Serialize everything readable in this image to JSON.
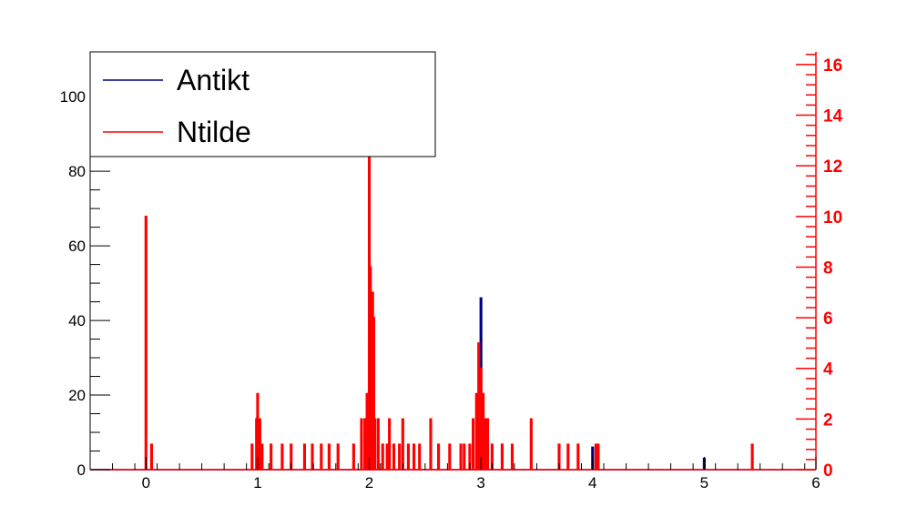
{
  "chart_data": {
    "type": "line",
    "title": "",
    "xlabel": "",
    "ylabel": "",
    "xlim": [
      -0.5,
      6
    ],
    "ylim_left": [
      0,
      112
    ],
    "ylim_right": [
      0,
      16.5
    ],
    "x_ticks": [
      "0",
      "1",
      "2",
      "3",
      "4",
      "5",
      "6"
    ],
    "y_left_ticks": [
      "0",
      "20",
      "40",
      "60",
      "80",
      "100"
    ],
    "y_right_ticks": [
      "0",
      "2",
      "4",
      "6",
      "8",
      "10",
      "12",
      "14",
      "16"
    ],
    "legend": {
      "position": "top-left",
      "entries": [
        "Antikt",
        "Ntilde"
      ]
    },
    "colors": {
      "Antikt": "#000080",
      "Ntilde": "#ff0000",
      "right_axis": "#ff0000"
    },
    "series": [
      {
        "name": "Antikt",
        "axis": "left",
        "points": [
          [
            1.0,
            14
          ],
          [
            1.02,
            6
          ],
          [
            2.0,
            34
          ],
          [
            2.02,
            22
          ],
          [
            2.04,
            8
          ],
          [
            2.99,
            14
          ],
          [
            3.0,
            46
          ],
          [
            3.02,
            8
          ],
          [
            4.0,
            6
          ],
          [
            5.0,
            3
          ]
        ]
      },
      {
        "name": "Ntilde",
        "axis": "right",
        "points": [
          [
            0.0,
            10
          ],
          [
            0.05,
            1
          ],
          [
            0.95,
            1
          ],
          [
            0.99,
            2
          ],
          [
            1.0,
            3
          ],
          [
            1.02,
            2
          ],
          [
            1.04,
            1
          ],
          [
            1.12,
            1
          ],
          [
            1.22,
            1
          ],
          [
            1.3,
            1
          ],
          [
            1.42,
            1
          ],
          [
            1.49,
            1
          ],
          [
            1.57,
            1
          ],
          [
            1.64,
            1
          ],
          [
            1.72,
            1
          ],
          [
            1.86,
            1
          ],
          [
            1.93,
            2
          ],
          [
            1.96,
            2
          ],
          [
            1.98,
            3
          ],
          [
            2.0,
            12.5
          ],
          [
            2.01,
            8
          ],
          [
            2.02,
            6
          ],
          [
            2.03,
            7
          ],
          [
            2.04,
            6
          ],
          [
            2.05,
            2
          ],
          [
            2.08,
            2
          ],
          [
            2.12,
            1
          ],
          [
            2.16,
            1
          ],
          [
            2.18,
            2
          ],
          [
            2.22,
            1
          ],
          [
            2.27,
            1
          ],
          [
            2.3,
            2
          ],
          [
            2.35,
            1
          ],
          [
            2.4,
            1
          ],
          [
            2.45,
            1
          ],
          [
            2.55,
            2
          ],
          [
            2.62,
            1
          ],
          [
            2.72,
            1
          ],
          [
            2.82,
            1
          ],
          [
            2.85,
            1
          ],
          [
            2.9,
            1
          ],
          [
            2.93,
            2
          ],
          [
            2.96,
            3
          ],
          [
            2.98,
            5
          ],
          [
            2.99,
            4
          ],
          [
            3.0,
            4
          ],
          [
            3.01,
            3
          ],
          [
            3.02,
            3
          ],
          [
            3.04,
            2
          ],
          [
            3.06,
            2
          ],
          [
            3.1,
            1
          ],
          [
            3.19,
            1
          ],
          [
            3.28,
            1
          ],
          [
            3.45,
            2
          ],
          [
            3.7,
            1
          ],
          [
            3.78,
            1
          ],
          [
            3.87,
            1
          ],
          [
            4.03,
            1
          ],
          [
            4.05,
            1
          ],
          [
            5.43,
            1
          ]
        ]
      }
    ]
  }
}
